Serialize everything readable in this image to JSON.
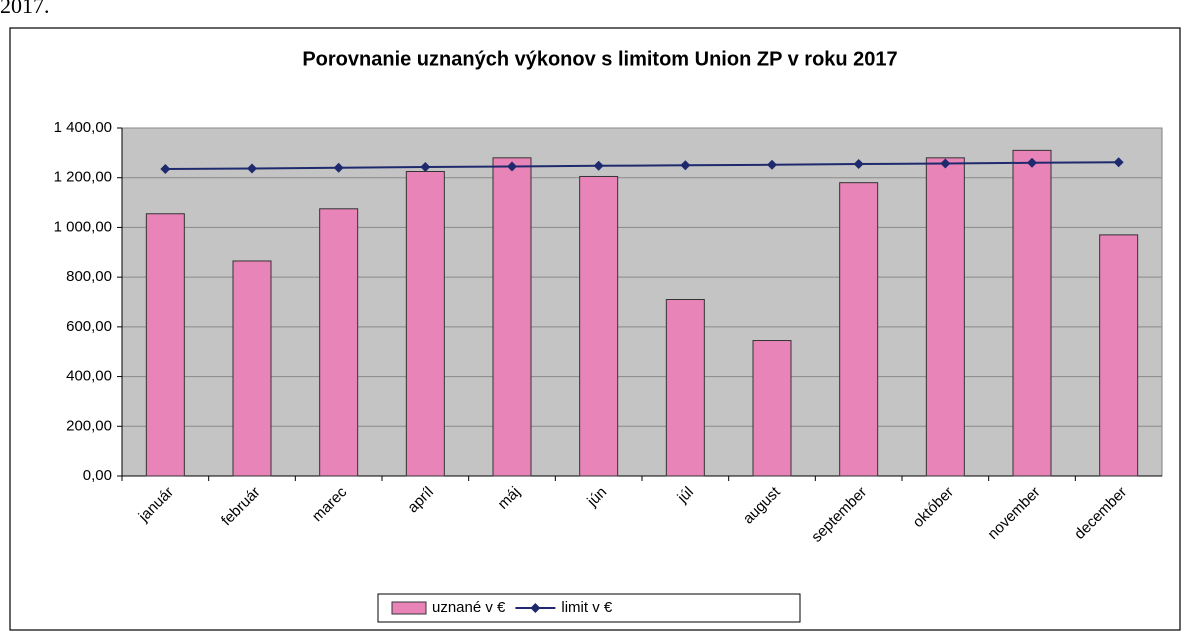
{
  "caption": "2017.",
  "chart_data": {
    "type": "bar-line",
    "title": "Porovnanie uznaných výkonov s limitom Union ZP v roku 2017",
    "categories": [
      "január",
      "február",
      "marec",
      "apríl",
      "máj",
      "jún",
      "júl",
      "august",
      "september",
      "október",
      "november",
      "december"
    ],
    "series": [
      {
        "name": "uznané v €",
        "type": "bar",
        "color": "#e884b8",
        "values": [
          1055,
          865,
          1075,
          1225,
          1280,
          1205,
          710,
          545,
          1180,
          1280,
          1310,
          970
        ]
      },
      {
        "name": "limit v €",
        "type": "line",
        "color": "#1f2a6e",
        "values": [
          1235,
          1237,
          1240,
          1243,
          1245,
          1248,
          1250,
          1252,
          1255,
          1257,
          1260,
          1262
        ]
      }
    ],
    "ylim": [
      0,
      1400
    ],
    "yticks": [
      {
        "value": 0,
        "label": "0,00"
      },
      {
        "value": 200,
        "label": "200,00"
      },
      {
        "value": 400,
        "label": "400,00"
      },
      {
        "value": 600,
        "label": "600,00"
      },
      {
        "value": 800,
        "label": "800,00"
      },
      {
        "value": 1000,
        "label": "1 000,00"
      },
      {
        "value": 1200,
        "label": "1 200,00"
      },
      {
        "value": 1400,
        "label": "1 400,00"
      }
    ],
    "grid": true,
    "plot_background": "#c4c4c4",
    "legend": "bottom"
  }
}
